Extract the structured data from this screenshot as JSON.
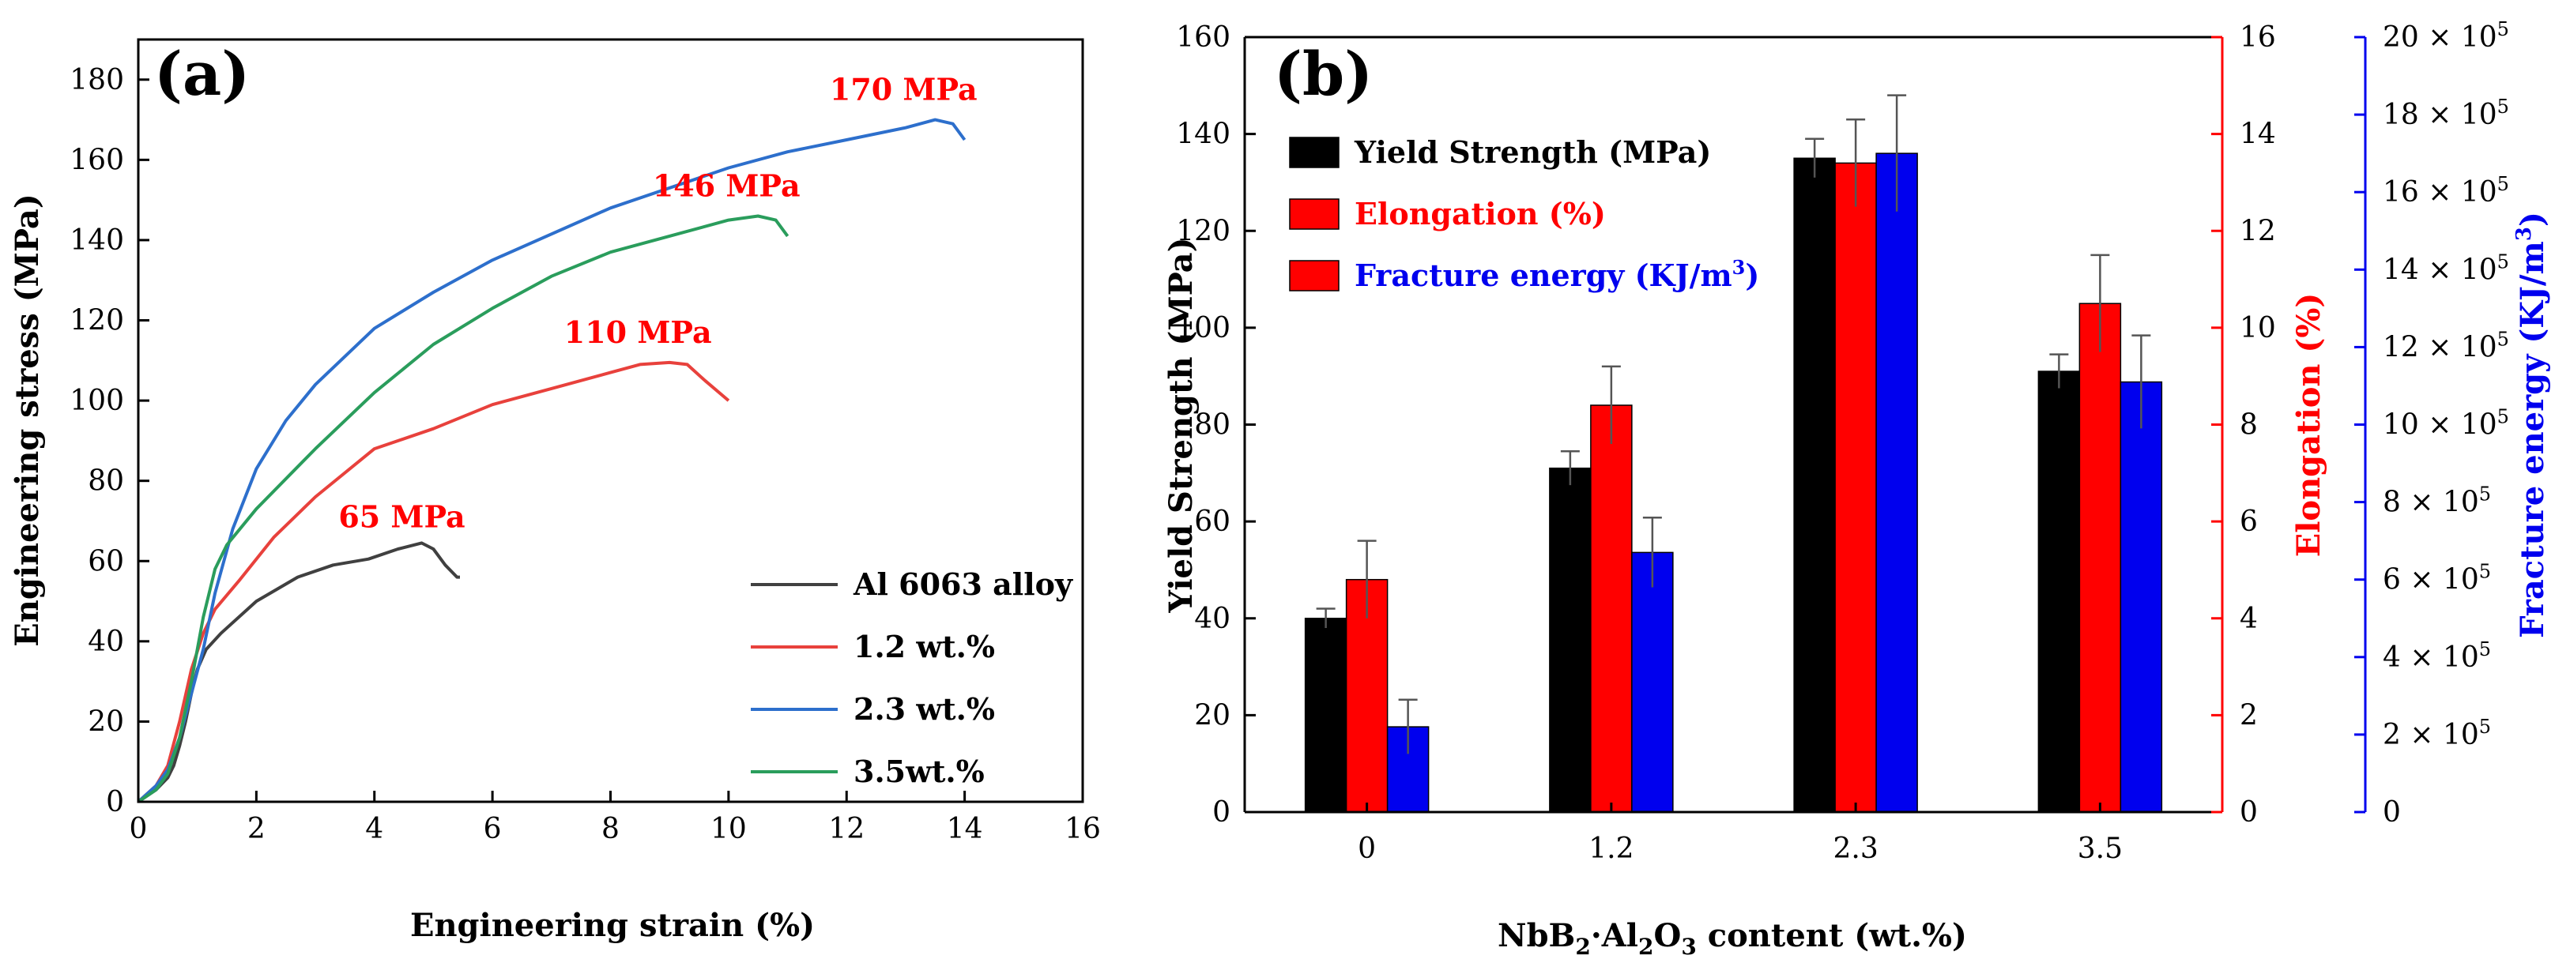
{
  "chart_data": [
    {
      "panel_label": "(a)",
      "type": "line",
      "xlabel": "Engineering strain (%)",
      "ylabel": "Engineering stress (MPa)",
      "xlim": [
        0,
        16
      ],
      "ylim": [
        0,
        190
      ],
      "xticks": [
        0,
        2,
        4,
        6,
        8,
        10,
        12,
        14,
        16
      ],
      "yticks": [
        0,
        20,
        40,
        60,
        80,
        100,
        120,
        140,
        160,
        180
      ],
      "legend_position": "bottom-right",
      "series": [
        {
          "name": "Al 6063 alloy",
          "color": "#404040",
          "peak_label": "65 MPa",
          "points": [
            [
              0,
              0
            ],
            [
              0.3,
              3
            ],
            [
              0.5,
              6
            ],
            [
              0.6,
              9
            ],
            [
              0.7,
              14
            ],
            [
              0.8,
              20
            ],
            [
              0.9,
              27
            ],
            [
              1.0,
              33
            ],
            [
              1.15,
              38
            ],
            [
              1.4,
              42
            ],
            [
              2.0,
              50
            ],
            [
              2.7,
              56
            ],
            [
              3.3,
              59
            ],
            [
              3.9,
              60.5
            ],
            [
              4.4,
              63
            ],
            [
              4.8,
              64.5
            ],
            [
              5.0,
              63
            ],
            [
              5.2,
              59
            ],
            [
              5.4,
              56
            ],
            [
              5.45,
              56
            ]
          ]
        },
        {
          "name": "1.2 wt.%",
          "color": "#e8413c",
          "peak_label": "110 MPa",
          "points": [
            [
              0,
              0
            ],
            [
              0.3,
              4
            ],
            [
              0.5,
              9
            ],
            [
              0.7,
              20
            ],
            [
              0.9,
              33
            ],
            [
              1.1,
              42
            ],
            [
              1.3,
              48
            ],
            [
              1.7,
              55
            ],
            [
              2.3,
              66
            ],
            [
              3.0,
              76
            ],
            [
              4.0,
              88
            ],
            [
              5.0,
              93
            ],
            [
              6.0,
              99
            ],
            [
              7.0,
              103
            ],
            [
              8.0,
              107
            ],
            [
              8.5,
              109
            ],
            [
              9.0,
              109.5
            ],
            [
              9.3,
              109
            ],
            [
              9.6,
              105
            ],
            [
              10.0,
              100
            ]
          ]
        },
        {
          "name": "2.3 wt.%",
          "color": "#2d6fcc",
          "peak_label": "170 MPa",
          "points": [
            [
              0,
              0
            ],
            [
              0.3,
              4
            ],
            [
              0.5,
              8
            ],
            [
              0.7,
              16
            ],
            [
              0.9,
              27
            ],
            [
              1.1,
              38
            ],
            [
              1.3,
              52
            ],
            [
              1.6,
              68
            ],
            [
              2.0,
              83
            ],
            [
              2.5,
              95
            ],
            [
              3.0,
              104
            ],
            [
              4.0,
              118
            ],
            [
              5.0,
              127
            ],
            [
              6.0,
              135
            ],
            [
              8.0,
              148
            ],
            [
              10.0,
              158
            ],
            [
              11.0,
              162
            ],
            [
              12.0,
              165
            ],
            [
              13.0,
              168
            ],
            [
              13.5,
              170
            ],
            [
              13.8,
              169
            ],
            [
              14.0,
              165
            ]
          ]
        },
        {
          "name": "3.5wt.%",
          "color": "#2a9d5c",
          "peak_label": "146 MPa",
          "points": [
            [
              0,
              0
            ],
            [
              0.3,
              3
            ],
            [
              0.5,
              7
            ],
            [
              0.7,
              16
            ],
            [
              0.9,
              30
            ],
            [
              1.1,
              46
            ],
            [
              1.3,
              58
            ],
            [
              1.5,
              64
            ],
            [
              2.0,
              73
            ],
            [
              3.0,
              88
            ],
            [
              4.0,
              102
            ],
            [
              5.0,
              114
            ],
            [
              6.0,
              123
            ],
            [
              7.0,
              131
            ],
            [
              8.0,
              137
            ],
            [
              9.0,
              141
            ],
            [
              10.0,
              145
            ],
            [
              10.5,
              146
            ],
            [
              10.8,
              145
            ],
            [
              11.0,
              141
            ]
          ]
        }
      ]
    },
    {
      "panel_label": "(b)",
      "type": "bar",
      "xlabel_parts": [
        {
          "text": "NbB",
          "sub": false
        },
        {
          "text": "2",
          "sub": true
        },
        {
          "text": "·Al",
          "sub": false
        },
        {
          "text": "2",
          "sub": true
        },
        {
          "text": "O",
          "sub": false
        },
        {
          "text": "3",
          "sub": true
        },
        {
          "text": " content (wt.%)",
          "sub": false
        }
      ],
      "categories": [
        "0",
        "1.2",
        "2.3",
        "3.5"
      ],
      "legend_position": "top-left",
      "axes": [
        {
          "name": "Yield Strength (MPa)",
          "side": "left",
          "color": "#000000",
          "ylim": [
            0,
            160
          ],
          "ticks": [
            0,
            20,
            40,
            60,
            80,
            100,
            120,
            140,
            160
          ],
          "title": "Yield Strength (MPa)"
        },
        {
          "name": "Elongation (%)",
          "side": "right",
          "color": "#ff0000",
          "ylim": [
            0,
            16
          ],
          "ticks": [
            0,
            2,
            4,
            6,
            8,
            10,
            12,
            14,
            16
          ],
          "title": "Elongation (%)"
        },
        {
          "name": "Fracture energy",
          "side": "right-outer",
          "color": "#0000ee",
          "ylim": [
            0,
            20
          ],
          "ticks": [
            0,
            2,
            4,
            6,
            8,
            10,
            12,
            14,
            16,
            18,
            20
          ],
          "tick_suffix": " × 10",
          "tick_exponent": "5",
          "title": "Fracture energy (KJ/m",
          "title_sup": "3",
          "title_end": ")"
        }
      ],
      "series": [
        {
          "name": "Yield Strength (MPa)",
          "legend_label": "Yield Strength (MPa)",
          "legend_label_color": "#000000",
          "swatch_color": "#000000",
          "color": "#000000",
          "axis": 0,
          "values": [
            40,
            71,
            135,
            91
          ],
          "errors": [
            2,
            3.5,
            4,
            3.5
          ]
        },
        {
          "name": "Elongation (%)",
          "legend_label": "Elongation (%)",
          "legend_label_color": "#ff0000",
          "swatch_color": "#ff0000",
          "color": "#ff0000",
          "axis": 1,
          "values": [
            4.8,
            8.4,
            13.4,
            10.5
          ],
          "errors": [
            0.8,
            0.8,
            0.9,
            1.0
          ]
        },
        {
          "name": "Fracture energy (KJ/m3)",
          "legend_label": "Fracture energy (KJ/m",
          "legend_label_sup": "3",
          "legend_label_end": ")",
          "legend_label_color": "#0000ee",
          "swatch_color": "#ff0000",
          "color": "#0000ee",
          "axis": 2,
          "values": [
            2.2,
            6.7,
            17.0,
            11.1
          ],
          "errors": [
            0.7,
            0.9,
            1.5,
            1.2
          ]
        }
      ]
    }
  ]
}
